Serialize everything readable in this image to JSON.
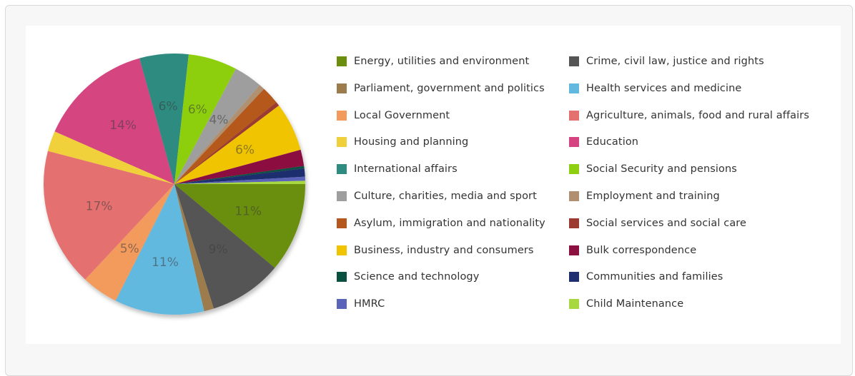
{
  "chart_data": {
    "type": "pie",
    "legend_position": "right",
    "slices": [
      {
        "name": "Energy, utilities and environment",
        "value": 11,
        "label": "11%",
        "color": "#6b8e0c"
      },
      {
        "name": "Crime, civil law, justice and rights",
        "value": 9,
        "label": "9%",
        "color": "#555555"
      },
      {
        "name": "Parliament, government and politics",
        "value": 1.2,
        "label": "",
        "color": "#9c7b4d"
      },
      {
        "name": "Health services and medicine",
        "value": 11,
        "label": "11%",
        "color": "#62b9e0"
      },
      {
        "name": "Local Government",
        "value": 4.5,
        "label": "5%",
        "color": "#f39a5d"
      },
      {
        "name": "Agriculture, animals, food and rural affairs",
        "value": 17,
        "label": "17%",
        "color": "#e57070"
      },
      {
        "name": "Housing and planning",
        "value": 2.5,
        "label": "",
        "color": "#f0d03a"
      },
      {
        "name": "Education",
        "value": 14,
        "label": "14%",
        "color": "#d54480"
      },
      {
        "name": "International affairs",
        "value": 6,
        "label": "6%",
        "color": "#2e8b80"
      },
      {
        "name": "Social Security and pensions",
        "value": 6,
        "label": "6%",
        "color": "#8ecf10"
      },
      {
        "name": "Culture, charities, media and sport",
        "value": 3.5,
        "label": "4%",
        "color": "#9e9e9e"
      },
      {
        "name": "Employment and training",
        "value": 0.7,
        "label": "",
        "color": "#b09070"
      },
      {
        "name": "Asylum, immigration and nationality",
        "value": 2.2,
        "label": "",
        "color": "#b5581e"
      },
      {
        "name": "Social services and social care",
        "value": 0.5,
        "label": "",
        "color": "#9b3a30"
      },
      {
        "name": "Business, industry and consumers",
        "value": 6,
        "label": "6%",
        "color": "#f0c400"
      },
      {
        "name": "Bulk correspondence",
        "value": 2,
        "label": "",
        "color": "#8c1040"
      },
      {
        "name": "Science and technology",
        "value": 0.3,
        "label": "",
        "color": "#0a5040"
      },
      {
        "name": "Communities and families",
        "value": 1,
        "label": "",
        "color": "#1f2e6e"
      },
      {
        "name": "HMRC",
        "value": 0.5,
        "label": "",
        "color": "#5a64b8"
      },
      {
        "name": "Child Maintenance",
        "value": 0.4,
        "label": "",
        "color": "#a8d840"
      }
    ]
  }
}
